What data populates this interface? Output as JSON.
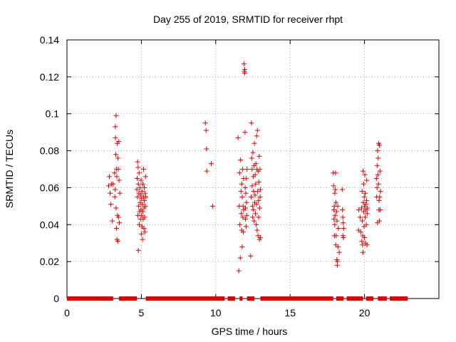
{
  "chart_data": {
    "type": "scatter",
    "title": "Day 255 of 2019, SRMTID for receiver rhpt",
    "xlabel": "GPS time / hours",
    "ylabel": "SRMTID / TECUs",
    "xlim": [
      0,
      25
    ],
    "ylim": [
      0,
      0.14
    ],
    "x_ticks": [
      0,
      5,
      10,
      15,
      20
    ],
    "x_tick_labels": [
      "0",
      "5",
      "10",
      "15",
      "20"
    ],
    "y_ticks": [
      0,
      0.02,
      0.04,
      0.06,
      0.08,
      0.1,
      0.12,
      0.14
    ],
    "y_tick_labels": [
      "0",
      "0.02",
      "0.04",
      "0.06",
      "0.08",
      "0.1",
      "0.12",
      "0.14"
    ],
    "grid": true,
    "marker": "plus",
    "color": "#e00000",
    "zero_baseline_segments_hours": [
      [
        0.0,
        3.1
      ],
      [
        3.5,
        4.7
      ],
      [
        5.3,
        10.6
      ],
      [
        10.8,
        11.3
      ],
      [
        11.6,
        11.8
      ],
      [
        12.1,
        12.6
      ],
      [
        13.0,
        17.9
      ],
      [
        18.1,
        18.6
      ],
      [
        18.8,
        19.9
      ],
      [
        20.1,
        20.6
      ],
      [
        20.9,
        21.5
      ],
      [
        21.7,
        22.9
      ]
    ],
    "series": [
      {
        "name": "SRMTID",
        "points": [
          [
            2.8,
            0.061
          ],
          [
            2.85,
            0.066
          ],
          [
            2.9,
            0.057
          ],
          [
            2.95,
            0.051
          ],
          [
            3.0,
            0.062
          ],
          [
            3.05,
            0.042
          ],
          [
            3.1,
            0.062
          ],
          [
            3.2,
            0.068
          ],
          [
            3.22,
            0.055
          ],
          [
            3.24,
            0.059
          ],
          [
            3.25,
            0.093
          ],
          [
            3.26,
            0.087
          ],
          [
            3.28,
            0.078
          ],
          [
            3.3,
            0.099
          ],
          [
            3.3,
            0.049
          ],
          [
            3.32,
            0.07
          ],
          [
            3.33,
            0.038
          ],
          [
            3.35,
            0.066
          ],
          [
            3.36,
            0.032
          ],
          [
            3.38,
            0.084
          ],
          [
            3.4,
            0.045
          ],
          [
            3.42,
            0.031
          ],
          [
            3.43,
            0.076
          ],
          [
            3.45,
            0.07
          ],
          [
            3.46,
            0.044
          ],
          [
            3.48,
            0.085
          ],
          [
            3.5,
            0.064
          ],
          [
            3.52,
            0.041
          ],
          [
            3.55,
            0.057
          ],
          [
            4.7,
            0.059
          ],
          [
            4.72,
            0.065
          ],
          [
            4.74,
            0.055
          ],
          [
            4.75,
            0.074
          ],
          [
            4.77,
            0.045
          ],
          [
            4.78,
            0.071
          ],
          [
            4.8,
            0.026
          ],
          [
            4.8,
            0.062
          ],
          [
            4.82,
            0.05
          ],
          [
            4.84,
            0.057
          ],
          [
            4.85,
            0.068
          ],
          [
            4.86,
            0.04
          ],
          [
            4.88,
            0.047
          ],
          [
            4.9,
            0.06
          ],
          [
            4.92,
            0.052
          ],
          [
            4.94,
            0.043
          ],
          [
            4.95,
            0.056
          ],
          [
            4.97,
            0.048
          ],
          [
            4.98,
            0.064
          ],
          [
            5.0,
            0.035
          ],
          [
            5.0,
            0.054
          ],
          [
            5.02,
            0.045
          ],
          [
            5.04,
            0.058
          ],
          [
            5.05,
            0.039
          ],
          [
            5.07,
            0.051
          ],
          [
            5.08,
            0.032
          ],
          [
            5.1,
            0.062
          ],
          [
            5.1,
            0.047
          ],
          [
            5.12,
            0.043
          ],
          [
            5.14,
            0.055
          ],
          [
            5.15,
            0.07
          ],
          [
            5.17,
            0.038
          ],
          [
            5.18,
            0.049
          ],
          [
            5.2,
            0.06
          ],
          [
            5.2,
            0.053
          ],
          [
            5.22,
            0.044
          ],
          [
            5.24,
            0.036
          ],
          [
            5.25,
            0.057
          ],
          [
            5.27,
            0.05
          ],
          [
            5.28,
            0.066
          ],
          [
            5.3,
            0.055
          ],
          [
            9.3,
            0.095
          ],
          [
            9.35,
            0.091
          ],
          [
            9.38,
            0.081
          ],
          [
            9.4,
            0.069
          ],
          [
            9.7,
            0.073
          ],
          [
            9.8,
            0.05
          ],
          [
            11.5,
            0.087
          ],
          [
            11.55,
            0.015
          ],
          [
            11.58,
            0.05
          ],
          [
            11.6,
            0.068
          ],
          [
            11.62,
            0.04
          ],
          [
            11.65,
            0.022
          ],
          [
            11.67,
            0.075
          ],
          [
            11.7,
            0.058
          ],
          [
            11.72,
            0.046
          ],
          [
            11.74,
            0.037
          ],
          [
            11.75,
            0.062
          ],
          [
            11.77,
            0.028
          ],
          [
            11.78,
            0.055
          ],
          [
            11.8,
            0.07
          ],
          [
            11.82,
            0.044
          ],
          [
            11.84,
            0.05
          ],
          [
            11.85,
            0.036
          ],
          [
            11.87,
            0.065
          ],
          [
            11.88,
            0.048
          ],
          [
            11.9,
            0.127
          ],
          [
            11.92,
            0.123
          ],
          [
            11.94,
            0.122
          ],
          [
            11.95,
            0.124
          ],
          [
            11.97,
            0.09
          ],
          [
            11.98,
            0.06
          ],
          [
            12.0,
            0.049
          ],
          [
            12.0,
            0.043
          ],
          [
            12.02,
            0.057
          ],
          [
            12.04,
            0.039
          ],
          [
            12.05,
            0.065
          ],
          [
            12.07,
            0.052
          ],
          [
            12.08,
            0.045
          ],
          [
            12.1,
            0.07
          ],
          [
            12.35,
            0.023
          ],
          [
            12.38,
            0.055
          ],
          [
            12.4,
            0.095
          ],
          [
            12.42,
            0.076
          ],
          [
            12.44,
            0.07
          ],
          [
            12.45,
            0.061
          ],
          [
            12.47,
            0.05
          ],
          [
            12.48,
            0.044
          ],
          [
            12.5,
            0.079
          ],
          [
            12.52,
            0.066
          ],
          [
            12.54,
            0.048
          ],
          [
            12.55,
            0.058
          ],
          [
            12.57,
            0.072
          ],
          [
            12.58,
            0.042
          ],
          [
            12.6,
            0.084
          ],
          [
            12.62,
            0.052
          ],
          [
            12.64,
            0.056
          ],
          [
            12.65,
            0.067
          ],
          [
            12.67,
            0.046
          ],
          [
            12.68,
            0.062
          ],
          [
            12.7,
            0.073
          ],
          [
            12.72,
            0.04
          ],
          [
            12.74,
            0.051
          ],
          [
            12.75,
            0.088
          ],
          [
            12.77,
            0.07
          ],
          [
            12.78,
            0.037
          ],
          [
            12.8,
            0.091
          ],
          [
            12.82,
            0.058
          ],
          [
            12.84,
            0.034
          ],
          [
            12.85,
            0.069
          ],
          [
            12.87,
            0.053
          ],
          [
            12.88,
            0.044
          ],
          [
            12.9,
            0.063
          ],
          [
            12.92,
            0.077
          ],
          [
            12.94,
            0.032
          ],
          [
            12.95,
            0.049
          ],
          [
            12.97,
            0.07
          ],
          [
            12.98,
            0.055
          ],
          [
            13.0,
            0.033
          ],
          [
            13.0,
            0.059
          ],
          [
            17.9,
            0.068
          ],
          [
            17.92,
            0.061
          ],
          [
            17.94,
            0.048
          ],
          [
            17.95,
            0.043
          ],
          [
            17.97,
            0.05
          ],
          [
            17.98,
            0.034
          ],
          [
            18.0,
            0.057
          ],
          [
            18.0,
            0.04
          ],
          [
            18.02,
            0.045
          ],
          [
            18.04,
            0.059
          ],
          [
            18.05,
            0.068
          ],
          [
            18.07,
            0.029
          ],
          [
            18.08,
            0.052
          ],
          [
            18.1,
            0.034
          ],
          [
            18.12,
            0.047
          ],
          [
            18.14,
            0.021
          ],
          [
            18.15,
            0.042
          ],
          [
            18.17,
            0.018
          ],
          [
            18.18,
            0.02
          ],
          [
            18.2,
            0.05
          ],
          [
            18.22,
            0.028
          ],
          [
            18.24,
            0.038
          ],
          [
            18.3,
            0.025
          ],
          [
            18.5,
            0.059
          ],
          [
            18.52,
            0.048
          ],
          [
            18.54,
            0.044
          ],
          [
            18.55,
            0.034
          ],
          [
            18.57,
            0.041
          ],
          [
            18.58,
            0.033
          ],
          [
            18.6,
            0.038
          ],
          [
            19.6,
            0.037
          ],
          [
            19.62,
            0.048
          ],
          [
            19.7,
            0.044
          ],
          [
            19.75,
            0.036
          ],
          [
            19.8,
            0.049
          ],
          [
            19.82,
            0.031
          ],
          [
            19.84,
            0.058
          ],
          [
            19.85,
            0.042
          ],
          [
            19.87,
            0.029
          ],
          [
            19.88,
            0.034
          ],
          [
            19.9,
            0.025
          ],
          [
            19.9,
            0.069
          ],
          [
            19.92,
            0.052
          ],
          [
            19.94,
            0.062
          ],
          [
            19.95,
            0.047
          ],
          [
            19.97,
            0.039
          ],
          [
            19.98,
            0.055
          ],
          [
            20.0,
            0.033
          ],
          [
            20.0,
            0.05
          ],
          [
            20.02,
            0.067
          ],
          [
            20.04,
            0.044
          ],
          [
            20.05,
            0.057
          ],
          [
            20.07,
            0.03
          ],
          [
            20.08,
            0.051
          ],
          [
            20.1,
            0.048
          ],
          [
            20.12,
            0.04
          ],
          [
            20.14,
            0.053
          ],
          [
            20.15,
            0.064
          ],
          [
            20.17,
            0.029
          ],
          [
            20.18,
            0.046
          ],
          [
            20.2,
            0.049
          ],
          [
            20.8,
            0.065
          ],
          [
            20.82,
            0.055
          ],
          [
            20.84,
            0.06
          ],
          [
            20.85,
            0.072
          ],
          [
            20.87,
            0.041
          ],
          [
            20.88,
            0.08
          ],
          [
            20.9,
            0.067
          ],
          [
            20.92,
            0.076
          ],
          [
            20.94,
            0.062
          ],
          [
            20.95,
            0.084
          ],
          [
            20.97,
            0.048
          ],
          [
            20.98,
            0.053
          ],
          [
            21.0,
            0.083
          ],
          [
            21.0,
            0.042
          ],
          [
            21.02,
            0.055
          ],
          [
            21.04,
            0.069
          ],
          [
            21.05,
            0.048
          ],
          [
            21.07,
            0.058
          ]
        ]
      }
    ]
  }
}
